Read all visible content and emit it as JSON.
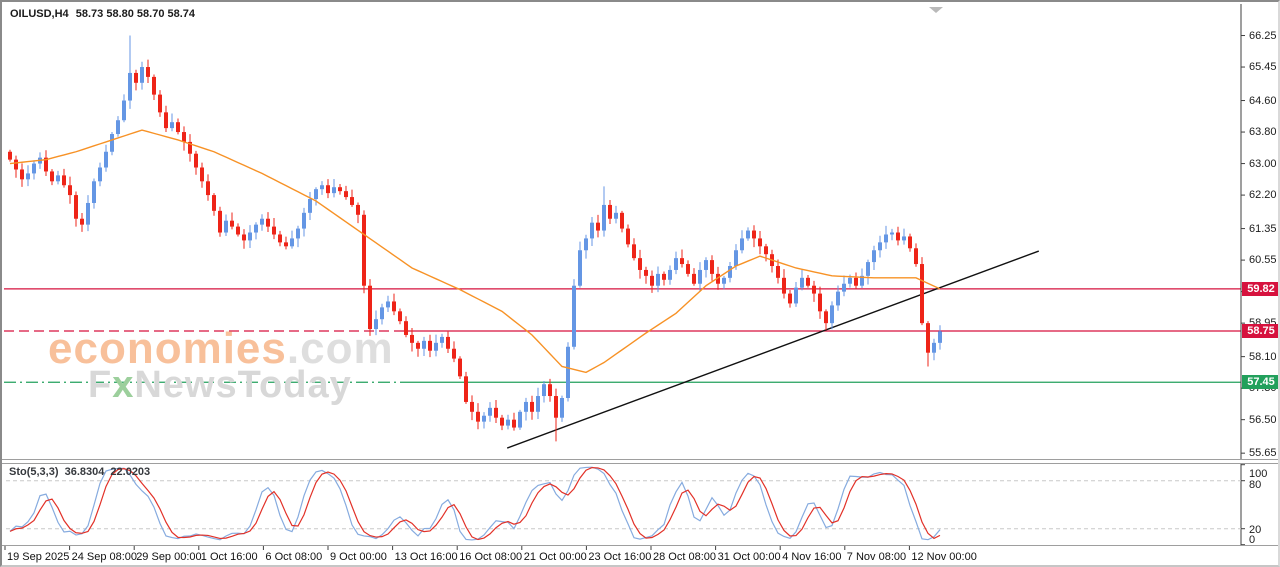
{
  "window": {
    "title": "OILUSD,H4",
    "ohlc": "58.73 58.80 58.70 58.74"
  },
  "watermark": {
    "brand_orange": "economies",
    "brand_gray": ".com",
    "line2_prefix": "F",
    "line2_x": "x",
    "line2_suffix": "NewsToday"
  },
  "price_axis": {
    "ticks": [
      "66.25",
      "65.45",
      "64.60",
      "63.80",
      "63.00",
      "62.20",
      "61.35",
      "60.55",
      "59.75",
      "58.95",
      "58.10",
      "57.30",
      "56.50",
      "55.65"
    ]
  },
  "time_axis": {
    "labels": [
      "19 Sep 2025",
      "24 Sep 08:00",
      "29 Sep 00:00",
      "1 Oct 16:00",
      "6 Oct 08:00",
      "9 Oct 00:00",
      "13 Oct 16:00",
      "16 Oct 08:00",
      "21 Oct 00:00",
      "23 Oct 16:00",
      "28 Oct 08:00",
      "31 Oct 00:00",
      "4 Nov 16:00",
      "7 Nov 08:00",
      "12 Nov 00:00"
    ]
  },
  "levels": [
    {
      "label": "59.82",
      "price": 59.82,
      "color": "#d6123e",
      "style": "solid"
    },
    {
      "label": "58.75",
      "price": 58.75,
      "color": "#d6123e",
      "style": "dashed-left"
    },
    {
      "label": "57.45",
      "price": 57.45,
      "color": "#22a05c",
      "style": "dashdot-left"
    }
  ],
  "stoch": {
    "label": "Sto(5,3,3)",
    "value_k": "36.8304",
    "value_d": "22.0203",
    "axis_labels": [
      "100",
      "80",
      "20",
      "0"
    ],
    "guide_levels": [
      80,
      20
    ],
    "k_color": "#86abdf",
    "d_color": "#e23128",
    "guide_color": "#c8c8c8"
  },
  "colors": {
    "bull": "#6496e4",
    "bear": "#ee2418",
    "ma": "#f79226",
    "trendline": "#111111",
    "axis_line": "#3f3f3f"
  },
  "chart_data": {
    "type": "candlestick",
    "symbol": "OILUSD",
    "timeframe": "H4",
    "title": "OILUSD,H4 58.73 58.80 58.70 58.74",
    "last_ohlc": {
      "open": 58.73,
      "high": 58.8,
      "low": 58.7,
      "close": 58.74
    },
    "ylim": [
      55.65,
      66.25
    ],
    "x_range": [
      "19 Sep 2025",
      "12 Nov 00:00"
    ],
    "grid": false,
    "first_open": 63.3,
    "closes": [
      63.1,
      62.85,
      62.6,
      62.75,
      63.0,
      63.15,
      62.8,
      62.55,
      62.7,
      62.45,
      62.2,
      61.6,
      61.45,
      62.0,
      62.55,
      62.9,
      63.3,
      63.75,
      64.1,
      64.6,
      65.3,
      65.05,
      65.45,
      65.2,
      64.75,
      64.3,
      63.9,
      64.05,
      63.8,
      63.55,
      63.25,
      62.9,
      62.55,
      62.2,
      61.8,
      61.25,
      61.55,
      61.4,
      61.2,
      61.05,
      61.25,
      61.45,
      61.6,
      61.4,
      61.2,
      61.0,
      60.9,
      61.1,
      61.35,
      61.75,
      62.1,
      62.35,
      62.45,
      62.25,
      62.4,
      62.3,
      62.15,
      61.95,
      61.7,
      59.9,
      58.8,
      59.05,
      59.35,
      59.5,
      59.25,
      59.0,
      58.65,
      58.45,
      58.3,
      58.5,
      58.25,
      58.45,
      58.6,
      58.3,
      58.05,
      57.6,
      56.95,
      56.7,
      56.45,
      56.6,
      56.8,
      56.55,
      56.35,
      56.5,
      56.3,
      56.7,
      56.95,
      56.7,
      57.1,
      57.4,
      57.1,
      56.55,
      57.05,
      58.35,
      59.9,
      60.8,
      61.1,
      61.5,
      61.3,
      61.95,
      61.6,
      61.75,
      61.35,
      60.95,
      60.6,
      60.3,
      60.15,
      59.9,
      60.2,
      60.05,
      60.3,
      60.6,
      60.45,
      60.2,
      59.95,
      60.3,
      60.55,
      60.2,
      59.95,
      60.1,
      60.4,
      60.8,
      61.1,
      61.3,
      61.1,
      60.9,
      60.7,
      60.4,
      60.1,
      59.7,
      59.45,
      59.85,
      60.1,
      59.9,
      59.7,
      59.25,
      58.95,
      59.4,
      59.75,
      59.95,
      60.1,
      59.9,
      60.15,
      60.5,
      60.8,
      61.0,
      61.2,
      61.25,
      61.05,
      61.15,
      60.85,
      60.45,
      58.95,
      58.2,
      58.45,
      58.74
    ],
    "spikes": [
      {
        "i": 20,
        "high": 66.25
      },
      {
        "i": 91,
        "low": 55.95
      },
      {
        "i": 99,
        "high": 62.42
      },
      {
        "i": 153,
        "low": 57.85
      }
    ],
    "ma_anchors": [
      [
        0,
        63.0
      ],
      [
        6,
        63.1
      ],
      [
        11,
        63.3
      ],
      [
        17,
        63.6
      ],
      [
        22,
        63.85
      ],
      [
        28,
        63.6
      ],
      [
        34,
        63.3
      ],
      [
        42,
        62.75
      ],
      [
        51,
        62.05
      ],
      [
        59,
        61.2
      ],
      [
        67,
        60.35
      ],
      [
        75,
        59.8
      ],
      [
        82,
        59.25
      ],
      [
        87,
        58.65
      ],
      [
        92,
        57.85
      ],
      [
        96,
        57.7
      ],
      [
        99,
        57.95
      ],
      [
        106,
        58.7
      ],
      [
        111,
        59.2
      ],
      [
        116,
        59.9
      ],
      [
        121,
        60.4
      ],
      [
        125,
        60.65
      ],
      [
        131,
        60.35
      ],
      [
        137,
        60.15
      ],
      [
        144,
        60.1
      ],
      [
        151,
        60.1
      ],
      [
        155,
        59.82
      ]
    ],
    "trendline": {
      "i1": 83.2,
      "p1": 55.78,
      "i2": 171.8,
      "p2": 60.78
    },
    "indicator": {
      "name": "Stochastic",
      "params": [
        5,
        3,
        3
      ],
      "current_k": 36.8304,
      "current_d": 22.0203,
      "range": [
        0,
        100
      ]
    }
  }
}
